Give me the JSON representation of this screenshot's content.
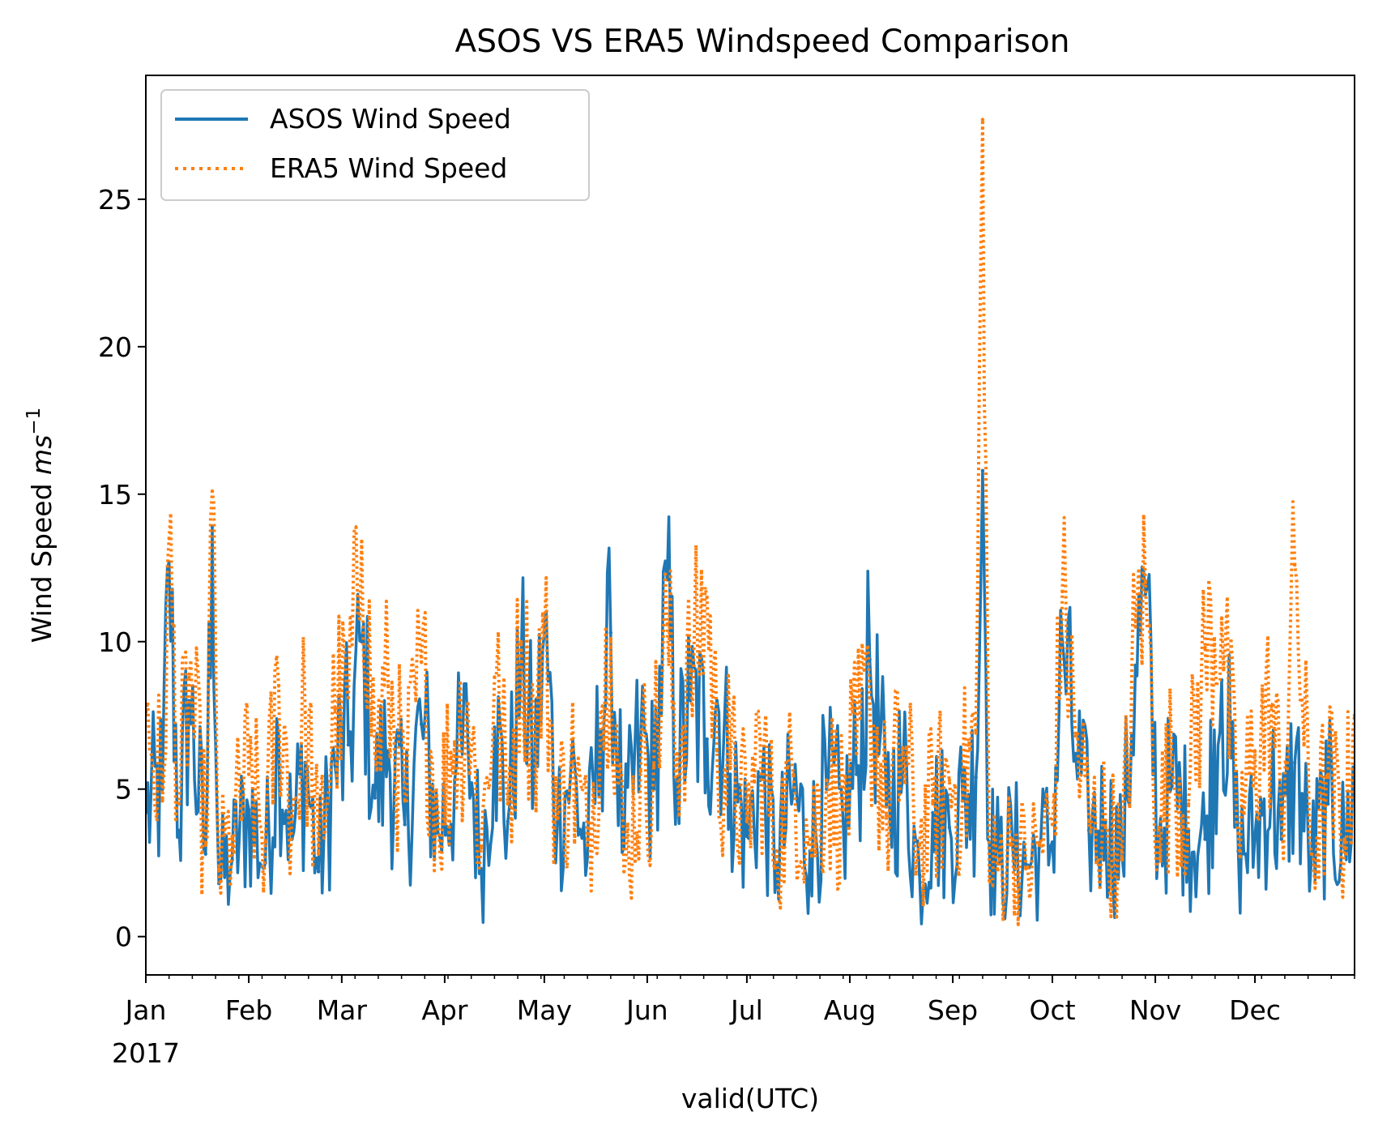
{
  "chart_data": {
    "type": "line",
    "title": "ASOS VS ERA5 Windspeed Comparison",
    "xlabel": "valid(UTC)",
    "ylabel_main": "Wind Speed ",
    "ylabel_unit": "ms",
    "ylabel_exp": "−1",
    "xlim": [
      "2017-01-01",
      "2017-12-31"
    ],
    "ylim": [
      -1.3,
      29.2
    ],
    "yticks": [
      0,
      5,
      10,
      15,
      20,
      25
    ],
    "xtick_dates": [
      "2017-01-01",
      "2017-02-01",
      "2017-03-01",
      "2017-04-01",
      "2017-05-01",
      "2017-06-01",
      "2017-07-01",
      "2017-08-01",
      "2017-09-01",
      "2017-10-01",
      "2017-11-01",
      "2017-12-01"
    ],
    "xtick_labels": [
      "Jan",
      "Feb",
      "Mar",
      "Apr",
      "May",
      "Jun",
      "Jul",
      "Aug",
      "Sep",
      "Oct",
      "Nov",
      "Dec"
    ],
    "xtick_year": "2017",
    "grid": false,
    "legend_position": "upper-left",
    "series": [
      {
        "name": "ASOS Wind Speed",
        "color": "#1f77b4",
        "style": "solid",
        "x": [
          "2017-01-01",
          "2017-01-06",
          "2017-01-08",
          "2017-01-11",
          "2017-01-14",
          "2017-01-19",
          "2017-01-21",
          "2017-01-23",
          "2017-01-27",
          "2017-02-01",
          "2017-02-06",
          "2017-02-10",
          "2017-02-14",
          "2017-02-18",
          "2017-02-22",
          "2017-02-27",
          "2017-03-03",
          "2017-03-07",
          "2017-03-11",
          "2017-03-15",
          "2017-03-20",
          "2017-03-25",
          "2017-03-30",
          "2017-04-04",
          "2017-04-08",
          "2017-04-12",
          "2017-04-16",
          "2017-04-20",
          "2017-04-24",
          "2017-04-28",
          "2017-05-01",
          "2017-05-05",
          "2017-05-09",
          "2017-05-14",
          "2017-05-18",
          "2017-05-21",
          "2017-05-25",
          "2017-05-30",
          "2017-06-03",
          "2017-06-07",
          "2017-06-10",
          "2017-06-14",
          "2017-06-19",
          "2017-06-22",
          "2017-06-26",
          "2017-07-01",
          "2017-07-05",
          "2017-07-10",
          "2017-07-15",
          "2017-07-20",
          "2017-07-25",
          "2017-07-30",
          "2017-08-03",
          "2017-08-07",
          "2017-08-12",
          "2017-08-17",
          "2017-08-22",
          "2017-08-26",
          "2017-08-31",
          "2017-09-04",
          "2017-09-08",
          "2017-09-10",
          "2017-09-12",
          "2017-09-15",
          "2017-09-19",
          "2017-09-23",
          "2017-09-27",
          "2017-10-01",
          "2017-10-04",
          "2017-10-08",
          "2017-10-12",
          "2017-10-17",
          "2017-10-22",
          "2017-10-26",
          "2017-10-29",
          "2017-11-02",
          "2017-11-06",
          "2017-11-11",
          "2017-11-16",
          "2017-11-21",
          "2017-11-26",
          "2017-12-01",
          "2017-12-06",
          "2017-12-09",
          "2017-12-13",
          "2017-12-18",
          "2017-12-23",
          "2017-12-28",
          "2017-12-31"
        ],
        "y": [
          4.2,
          5.0,
          12.7,
          3.6,
          8.0,
          2.8,
          13.9,
          1.8,
          2.6,
          4.3,
          2.5,
          6.8,
          3.3,
          5.9,
          2.2,
          5.8,
          6.5,
          10.0,
          4.7,
          6.3,
          3.8,
          7.2,
          3.5,
          5.3,
          6.6,
          2.3,
          7.1,
          3.9,
          9.2,
          5.6,
          10.3,
          3.9,
          5.7,
          2.7,
          7.0,
          10.3,
          3.0,
          6.7,
          5.0,
          12.1,
          5.4,
          8.0,
          6.7,
          8.0,
          5.5,
          3.4,
          5.3,
          2.5,
          4.9,
          2.9,
          5.0,
          3.9,
          5.5,
          9.4,
          4.4,
          5.6,
          2.1,
          4.2,
          3.7,
          4.6,
          5.4,
          15.8,
          3.2,
          2.5,
          3.1,
          2.4,
          3.0,
          3.2,
          10.0,
          6.2,
          3.6,
          3.9,
          2.7,
          9.2,
          11.6,
          3.2,
          5.1,
          3.6,
          3.3,
          8.7,
          2.9,
          3.4,
          5.1,
          3.3,
          5.9,
          2.6,
          4.5,
          3.0,
          5.3
        ]
      },
      {
        "name": "ERA5 Wind Speed",
        "color": "#ff7f0e",
        "style": "dotted",
        "x": [
          "2017-01-01",
          "2017-01-06",
          "2017-01-08",
          "2017-01-11",
          "2017-01-14",
          "2017-01-19",
          "2017-01-21",
          "2017-01-23",
          "2017-01-27",
          "2017-02-01",
          "2017-02-06",
          "2017-02-10",
          "2017-02-14",
          "2017-02-18",
          "2017-02-22",
          "2017-02-27",
          "2017-03-03",
          "2017-03-07",
          "2017-03-11",
          "2017-03-15",
          "2017-03-20",
          "2017-03-25",
          "2017-03-30",
          "2017-04-04",
          "2017-04-08",
          "2017-04-12",
          "2017-04-16",
          "2017-04-20",
          "2017-04-24",
          "2017-04-28",
          "2017-05-01",
          "2017-05-05",
          "2017-05-09",
          "2017-05-14",
          "2017-05-18",
          "2017-05-21",
          "2017-05-25",
          "2017-05-30",
          "2017-06-03",
          "2017-06-07",
          "2017-06-10",
          "2017-06-14",
          "2017-06-19",
          "2017-06-22",
          "2017-06-26",
          "2017-07-01",
          "2017-07-05",
          "2017-07-10",
          "2017-07-15",
          "2017-07-20",
          "2017-07-25",
          "2017-07-30",
          "2017-08-03",
          "2017-08-07",
          "2017-08-12",
          "2017-08-17",
          "2017-08-22",
          "2017-08-26",
          "2017-08-31",
          "2017-09-04",
          "2017-09-08",
          "2017-09-10",
          "2017-09-12",
          "2017-09-15",
          "2017-09-19",
          "2017-09-23",
          "2017-09-27",
          "2017-10-01",
          "2017-10-04",
          "2017-10-08",
          "2017-10-12",
          "2017-10-17",
          "2017-10-22",
          "2017-10-26",
          "2017-10-29",
          "2017-11-02",
          "2017-11-06",
          "2017-11-11",
          "2017-11-16",
          "2017-11-21",
          "2017-11-26",
          "2017-12-01",
          "2017-12-06",
          "2017-12-09",
          "2017-12-13",
          "2017-12-18",
          "2017-12-23",
          "2017-12-28",
          "2017-12-31"
        ],
        "y": [
          7.6,
          4.6,
          13.5,
          4.5,
          8.8,
          3.1,
          15.1,
          2.3,
          3.4,
          5.5,
          3.2,
          8.5,
          4.1,
          7.6,
          2.8,
          7.7,
          8.1,
          13.4,
          6.2,
          8.5,
          4.6,
          9.3,
          4.2,
          6.6,
          7.9,
          3.0,
          8.8,
          4.5,
          10.0,
          6.8,
          10.2,
          4.0,
          5.9,
          3.1,
          7.6,
          10.1,
          2.2,
          5.6,
          5.8,
          10.6,
          6.2,
          9.0,
          11.5,
          6.3,
          5.7,
          3.9,
          6.7,
          2.9,
          5.5,
          3.3,
          5.3,
          4.3,
          6.2,
          8.1,
          4.1,
          6.4,
          3.1,
          4.5,
          5.3,
          5.0,
          6.9,
          27.7,
          1.9,
          2.6,
          3.3,
          2.3,
          3.1,
          3.8,
          11.7,
          6.8,
          3.9,
          3.7,
          2.6,
          10.5,
          12.0,
          3.7,
          5.8,
          4.5,
          9.8,
          10.8,
          3.5,
          6.3,
          7.8,
          4.3,
          12.6,
          2.8,
          5.4,
          3.3,
          7.5
        ]
      }
    ]
  }
}
